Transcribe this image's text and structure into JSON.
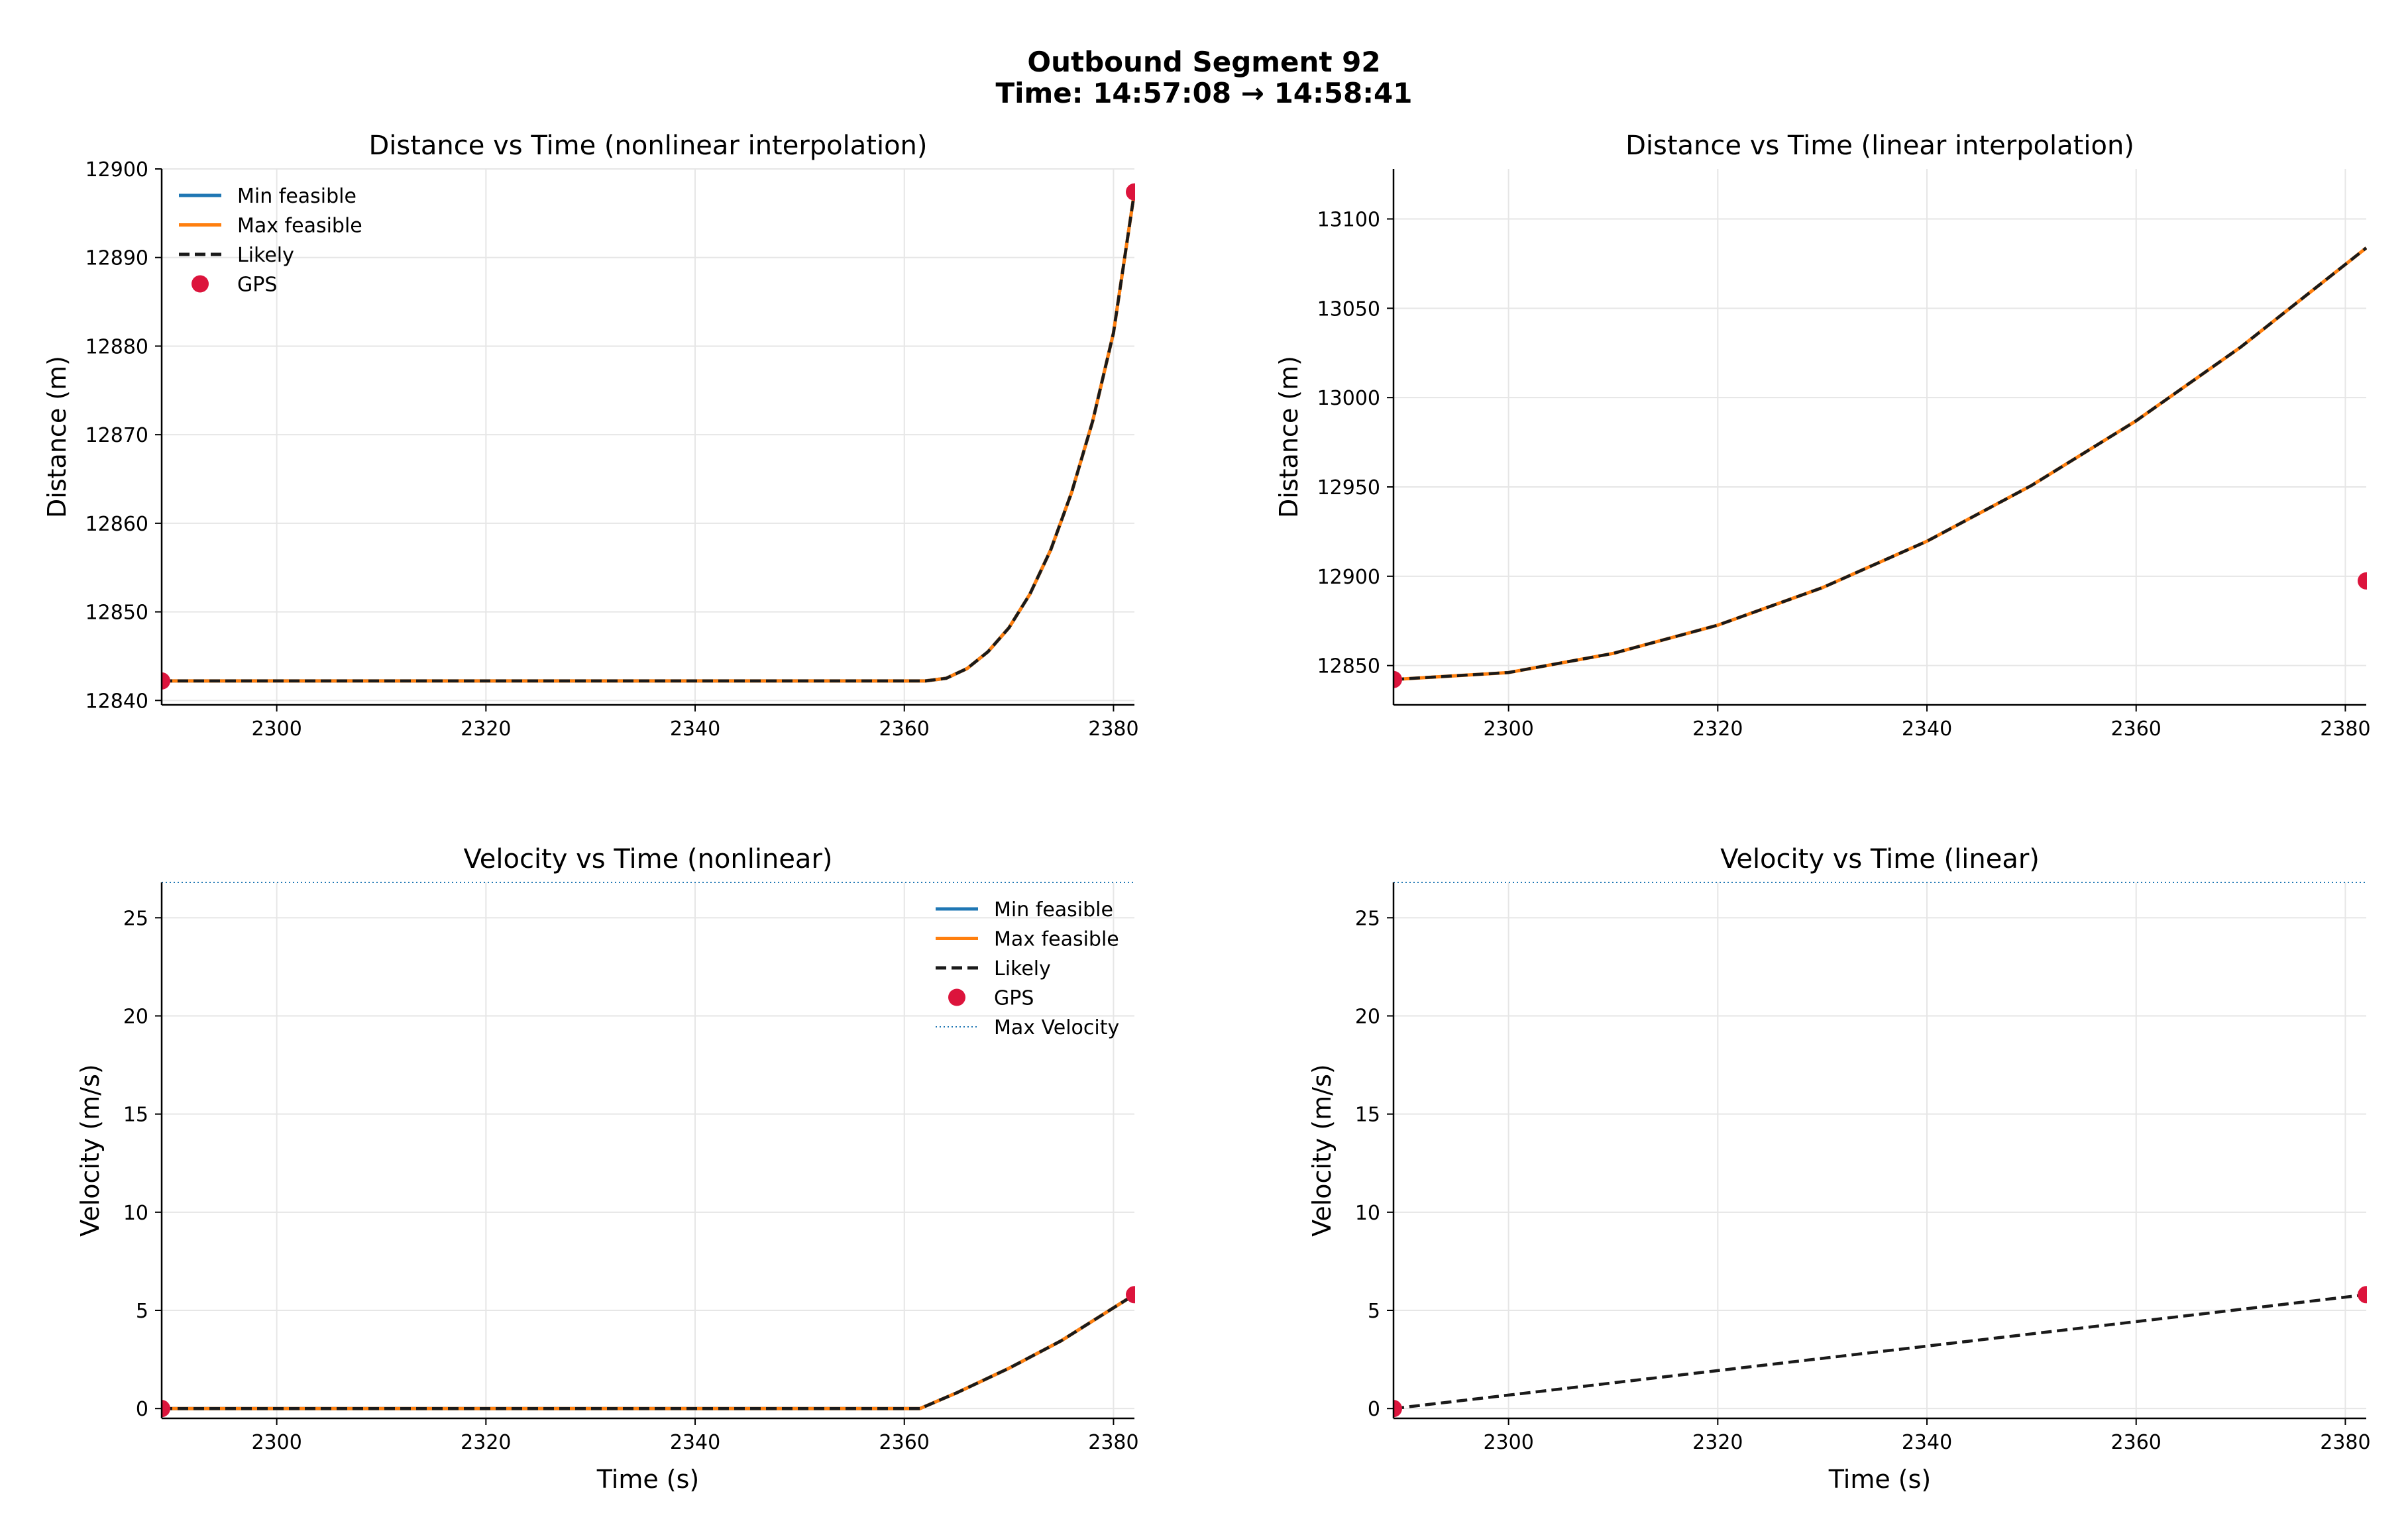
{
  "figure": {
    "title": "Outbound Segment 92",
    "subtitle": "Time: 14:57:08 → 14:58:41"
  },
  "colors": {
    "min_feasible": "#1f77b4",
    "max_feasible": "#ff7f0e",
    "likely": "#1a1a1a",
    "gps": "#dc143c",
    "max_velocity": "#1f77b4",
    "grid": "#e6e6e6"
  },
  "chart_data": [
    {
      "type": "line",
      "title": "Distance vs Time (nonlinear interpolation)",
      "xlabel": "",
      "ylabel": "Distance (m)",
      "xlim": [
        2289,
        2382
      ],
      "ylim": [
        12839.5,
        12900
      ],
      "xticks": [
        2300,
        2320,
        2340,
        2360,
        2380
      ],
      "yticks": [
        12840,
        12850,
        12860,
        12870,
        12880,
        12890,
        12900
      ],
      "grid": true,
      "legend": {
        "position": "top-left",
        "entries": [
          "Min feasible",
          "Max feasible",
          "Likely",
          "GPS"
        ]
      },
      "series": [
        {
          "name": "Min feasible",
          "style": "solid",
          "x": [
            2289,
            2300,
            2320,
            2340,
            2355,
            2362,
            2364,
            2366,
            2368,
            2370,
            2372,
            2374,
            2376,
            2378,
            2380,
            2382
          ],
          "y": [
            12842.2,
            12842.2,
            12842.2,
            12842.2,
            12842.2,
            12842.2,
            12842.5,
            12843.6,
            12845.5,
            12848.2,
            12852.0,
            12857.0,
            12863.5,
            12871.5,
            12881.5,
            12897.4
          ]
        },
        {
          "name": "Max feasible",
          "style": "solid",
          "x": [
            2289,
            2300,
            2320,
            2340,
            2355,
            2362,
            2364,
            2366,
            2368,
            2370,
            2372,
            2374,
            2376,
            2378,
            2380,
            2382
          ],
          "y": [
            12842.2,
            12842.2,
            12842.2,
            12842.2,
            12842.2,
            12842.2,
            12842.5,
            12843.6,
            12845.5,
            12848.2,
            12852.0,
            12857.0,
            12863.5,
            12871.5,
            12881.5,
            12897.4
          ]
        },
        {
          "name": "Likely",
          "style": "dashed",
          "x": [
            2289,
            2300,
            2320,
            2340,
            2355,
            2362,
            2364,
            2366,
            2368,
            2370,
            2372,
            2374,
            2376,
            2378,
            2380,
            2382
          ],
          "y": [
            12842.2,
            12842.2,
            12842.2,
            12842.2,
            12842.2,
            12842.2,
            12842.5,
            12843.6,
            12845.5,
            12848.2,
            12852.0,
            12857.0,
            12863.5,
            12871.5,
            12881.5,
            12897.4
          ]
        }
      ],
      "gps": {
        "x": [
          2289,
          2382
        ],
        "y": [
          12842.2,
          12897.4
        ]
      }
    },
    {
      "type": "line",
      "title": "Distance vs Time (linear interpolation)",
      "xlabel": "",
      "ylabel": "Distance (m)",
      "xlim": [
        2289,
        2382
      ],
      "ylim": [
        12828,
        13128
      ],
      "xticks": [
        2300,
        2320,
        2340,
        2360,
        2380
      ],
      "yticks": [
        12850,
        12900,
        12950,
        13000,
        13050,
        13100
      ],
      "grid": true,
      "legend": null,
      "series": [
        {
          "name": "Max feasible",
          "style": "solid",
          "x": [
            2289,
            2300,
            2310,
            2320,
            2330,
            2340,
            2350,
            2360,
            2370,
            2382
          ],
          "y": [
            12842.2,
            12846.1,
            12856.8,
            12872.6,
            12893.6,
            12919.6,
            12950.8,
            12987.0,
            13028.3,
            13083.8
          ]
        },
        {
          "name": "Likely",
          "style": "dashed",
          "x": [
            2289,
            2300,
            2310,
            2320,
            2330,
            2340,
            2350,
            2360,
            2370,
            2382
          ],
          "y": [
            12842.2,
            12846.1,
            12856.8,
            12872.6,
            12893.6,
            12919.6,
            12950.8,
            12987.0,
            13028.3,
            13083.8
          ]
        }
      ],
      "gps": {
        "x": [
          2289,
          2382
        ],
        "y": [
          12842.2,
          12897.4
        ]
      }
    },
    {
      "type": "line",
      "title": "Velocity vs Time (nonlinear)",
      "xlabel": "Time (s)",
      "ylabel": "Velocity (m/s)",
      "xlim": [
        2289,
        2382
      ],
      "ylim": [
        -0.5,
        26.8
      ],
      "xticks": [
        2300,
        2320,
        2340,
        2360,
        2380
      ],
      "yticks": [
        0,
        5,
        10,
        15,
        20,
        25
      ],
      "grid": true,
      "legend": {
        "position": "top-right",
        "entries": [
          "Min feasible",
          "Max feasible",
          "Likely",
          "GPS",
          "Max Velocity"
        ]
      },
      "max_velocity": 26.8,
      "series": [
        {
          "name": "Min feasible",
          "style": "solid",
          "x": [
            2289,
            2300,
            2320,
            2340,
            2361.5,
            2365,
            2370,
            2375,
            2382
          ],
          "y": [
            0,
            0,
            0,
            0,
            0,
            0.8,
            2.05,
            3.45,
            5.8
          ]
        },
        {
          "name": "Max feasible",
          "style": "solid",
          "x": [
            2289,
            2300,
            2320,
            2340,
            2361.5,
            2365,
            2370,
            2375,
            2382
          ],
          "y": [
            0,
            0,
            0,
            0,
            0,
            0.8,
            2.05,
            3.45,
            5.8
          ]
        },
        {
          "name": "Likely",
          "style": "dashed",
          "x": [
            2289,
            2300,
            2320,
            2340,
            2361.5,
            2365,
            2370,
            2375,
            2382
          ],
          "y": [
            0,
            0,
            0,
            0,
            0,
            0.8,
            2.05,
            3.45,
            5.8
          ]
        }
      ],
      "gps": {
        "x": [
          2289,
          2382
        ],
        "y": [
          0,
          5.8
        ]
      }
    },
    {
      "type": "line",
      "title": "Velocity vs Time (linear)",
      "xlabel": "Time (s)",
      "ylabel": "Velocity (m/s)",
      "xlim": [
        2289,
        2382
      ],
      "ylim": [
        -0.5,
        26.8
      ],
      "xticks": [
        2300,
        2320,
        2340,
        2360,
        2380
      ],
      "yticks": [
        0,
        5,
        10,
        15,
        20,
        25
      ],
      "grid": true,
      "legend": null,
      "max_velocity": 26.8,
      "series": [
        {
          "name": "Likely",
          "style": "dashed",
          "x": [
            2289,
            2382
          ],
          "y": [
            0,
            5.8
          ]
        }
      ],
      "gps": {
        "x": [
          2289,
          2382
        ],
        "y": [
          0,
          5.8
        ]
      }
    }
  ]
}
